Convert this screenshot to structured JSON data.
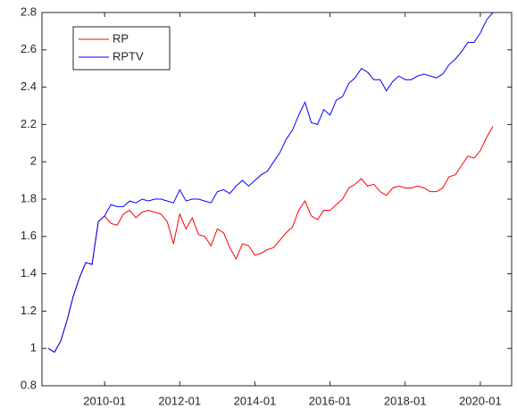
{
  "chart_data": {
    "type": "line",
    "x": [
      "2008-07",
      "2008-09",
      "2008-11",
      "2009-01",
      "2009-03",
      "2009-05",
      "2009-07",
      "2009-09",
      "2009-11",
      "2010-01",
      "2010-03",
      "2010-05",
      "2010-07",
      "2010-09",
      "2010-11",
      "2011-01",
      "2011-03",
      "2011-05",
      "2011-07",
      "2011-09",
      "2011-11",
      "2012-01",
      "2012-03",
      "2012-05",
      "2012-07",
      "2012-09",
      "2012-11",
      "2013-01",
      "2013-03",
      "2013-05",
      "2013-07",
      "2013-09",
      "2013-11",
      "2014-01",
      "2014-03",
      "2014-05",
      "2014-07",
      "2014-09",
      "2014-11",
      "2015-01",
      "2015-03",
      "2015-05",
      "2015-07",
      "2015-09",
      "2015-11",
      "2016-01",
      "2016-03",
      "2016-05",
      "2016-07",
      "2016-09",
      "2016-11",
      "2017-01",
      "2017-03",
      "2017-05",
      "2017-07",
      "2017-09",
      "2017-11",
      "2018-01",
      "2018-03",
      "2018-05",
      "2018-07",
      "2018-09",
      "2018-11",
      "2019-01",
      "2019-03",
      "2019-05",
      "2019-07",
      "2019-09",
      "2019-11",
      "2020-01",
      "2020-03",
      "2020-05"
    ],
    "series": [
      {
        "name": "RP",
        "color": "#ff0000",
        "values": [
          1.0,
          0.98,
          1.04,
          1.15,
          1.28,
          1.38,
          1.46,
          1.45,
          1.68,
          1.71,
          1.67,
          1.66,
          1.72,
          1.74,
          1.7,
          1.73,
          1.74,
          1.73,
          1.72,
          1.68,
          1.56,
          1.72,
          1.64,
          1.7,
          1.61,
          1.6,
          1.55,
          1.64,
          1.62,
          1.54,
          1.48,
          1.56,
          1.55,
          1.5,
          1.51,
          1.53,
          1.54,
          1.58,
          1.62,
          1.65,
          1.74,
          1.79,
          1.71,
          1.69,
          1.74,
          1.74,
          1.77,
          1.8,
          1.86,
          1.88,
          1.91,
          1.87,
          1.88,
          1.84,
          1.82,
          1.86,
          1.87,
          1.86,
          1.86,
          1.87,
          1.86,
          1.84,
          1.84,
          1.86,
          1.92,
          1.93,
          1.98,
          2.03,
          2.02,
          2.06,
          2.13,
          2.19
        ]
      },
      {
        "name": "RPTV",
        "color": "#0000ff",
        "values": [
          1.0,
          0.98,
          1.04,
          1.15,
          1.28,
          1.38,
          1.46,
          1.45,
          1.68,
          1.71,
          1.77,
          1.76,
          1.76,
          1.79,
          1.78,
          1.8,
          1.79,
          1.8,
          1.8,
          1.79,
          1.78,
          1.85,
          1.79,
          1.8,
          1.8,
          1.79,
          1.78,
          1.84,
          1.85,
          1.83,
          1.87,
          1.9,
          1.87,
          1.9,
          1.93,
          1.95,
          2.0,
          2.05,
          2.12,
          2.17,
          2.25,
          2.32,
          2.21,
          2.2,
          2.28,
          2.25,
          2.33,
          2.35,
          2.42,
          2.45,
          2.5,
          2.48,
          2.44,
          2.44,
          2.38,
          2.43,
          2.46,
          2.44,
          2.44,
          2.46,
          2.47,
          2.46,
          2.45,
          2.47,
          2.52,
          2.55,
          2.59,
          2.64,
          2.64,
          2.69,
          2.76,
          2.8
        ]
      }
    ],
    "xlim": [
      "2008-05",
      "2020-11"
    ],
    "xticks": [
      "2010-01",
      "2012-01",
      "2014-01",
      "2016-01",
      "2018-01",
      "2020-01"
    ],
    "ylim": [
      0.8,
      2.8
    ],
    "yticks": [
      0.8,
      1,
      1.2,
      1.4,
      1.6,
      1.8,
      2,
      2.2,
      2.4,
      2.6,
      2.8
    ],
    "grid": false,
    "legend": "upper left"
  }
}
